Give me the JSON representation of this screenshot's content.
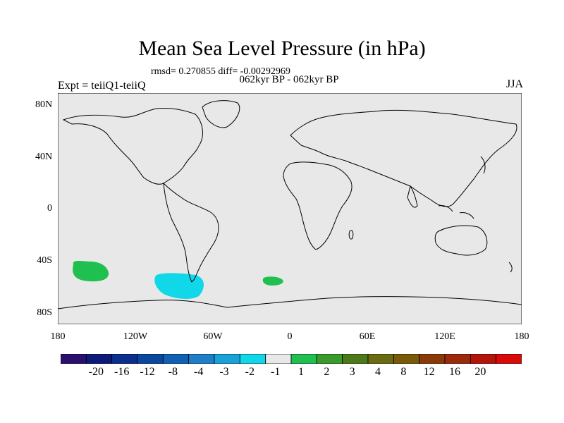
{
  "title": "Mean Sea Level Pressure (in hPa)",
  "stats": "rmsd= 0.270855 diff= -0.00292969",
  "subtitle": "062kyr BP - 062kyr BP",
  "left_label": "Expt = teiiQ1-teiiQ",
  "right_label": "JJA",
  "y_ticks": [
    "80N",
    "40N",
    "0",
    "40S",
    "80S"
  ],
  "x_ticks": [
    "180",
    "120W",
    "60W",
    "0",
    "60E",
    "120E",
    "180"
  ],
  "colorbar": {
    "colors": [
      "#2a0f6e",
      "#0c1a7a",
      "#0a2f8c",
      "#0a48a0",
      "#1060b4",
      "#1f7ec8",
      "#19a2d8",
      "#10d8e8",
      "#e8e8e8",
      "#1fbf50",
      "#3a9a2a",
      "#4d7a18",
      "#6a6a10",
      "#7a5a08",
      "#8a3a08",
      "#9a2a0a",
      "#b4140a",
      "#d80a0a"
    ],
    "labels": [
      "-20",
      "-16",
      "-12",
      "-8",
      "-4",
      "-3",
      "-2",
      "-1",
      "1",
      "2",
      "3",
      "4",
      "8",
      "12",
      "16",
      "20"
    ]
  },
  "map": {
    "background": "#e8e8e8",
    "anomalies": [
      {
        "name": "south-pacific-positive",
        "color": "#1fbf50"
      },
      {
        "name": "south-east-pacific-negative",
        "color": "#10d8e8"
      },
      {
        "name": "south-atlantic-positive",
        "color": "#1fbf50"
      }
    ]
  }
}
